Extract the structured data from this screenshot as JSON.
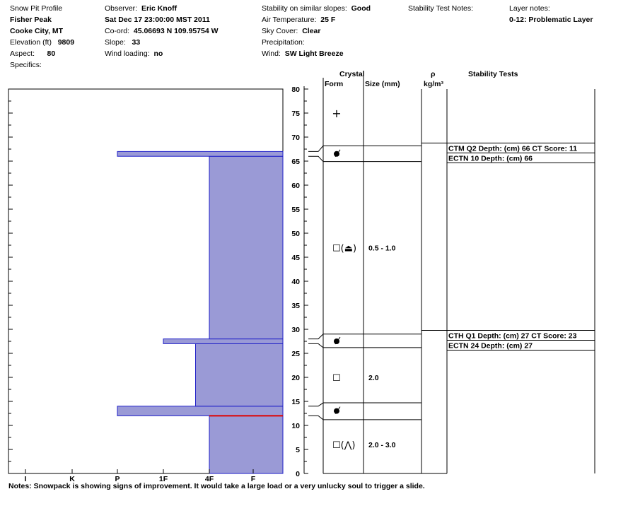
{
  "header": {
    "col1": {
      "title": "Snow Pit Profile",
      "location": "Fisher Peak",
      "area": "Cooke City, MT",
      "elevation_label": "Elevation (ft)",
      "elevation": "9809",
      "aspect_label": "Aspect:",
      "aspect": "80",
      "specifics_label": "Specifics:"
    },
    "col2": {
      "observer_label": "Observer:",
      "observer": "Eric Knoff",
      "datetime": "Sat Dec 17 23:00:00 MST 2011",
      "coord_label": "Co-ord:",
      "coord": "45.06693 N 109.95754 W",
      "slope_label": "Slope:",
      "slope": "33",
      "wind_loading_label": "Wind loading:",
      "wind_loading": "no"
    },
    "col3": {
      "stability_label": "Stability on similar slopes:",
      "stability": "Good",
      "air_temp_label": "Air Temperature:",
      "air_temp": "25 F",
      "sky_label": "Sky Cover:",
      "sky": "Clear",
      "precip_label": "Precipitation:",
      "wind_label": "Wind:",
      "wind": "SW Light Breeze"
    },
    "col4": {
      "stability_notes_label": "Stability Test Notes:"
    },
    "col5": {
      "layer_notes_label": "Layer notes:",
      "layer_note": "0-12: Problematic Layer"
    }
  },
  "columns": {
    "crystal": "Crystal",
    "form": "Form",
    "size": "Size (mm)",
    "rho": "ρ",
    "rho_unit": "kg/m³",
    "tests": "Stability Tests"
  },
  "chart_data": {
    "type": "bar",
    "orientation": "horizontal-step",
    "hardness_labels": [
      "I",
      "K",
      "P",
      "1F",
      "4F",
      "F"
    ],
    "y_axis_ticks": [
      "0",
      "5",
      "10",
      "15",
      "20",
      "25",
      "30",
      "35",
      "40",
      "45",
      "50",
      "55",
      "60",
      "65",
      "70",
      "75",
      "80"
    ],
    "ylim": [
      0,
      80
    ],
    "layers": [
      {
        "bottom": 0,
        "top": 12,
        "hardness": "4F",
        "value": 4
      },
      {
        "bottom": 12,
        "top": 14,
        "hardness": "P",
        "value": 2
      },
      {
        "bottom": 14,
        "top": 27,
        "hardness": "1F-4F",
        "value": 3.7
      },
      {
        "bottom": 27,
        "top": 28,
        "hardness": "1F",
        "value": 3
      },
      {
        "bottom": 28,
        "top": 66,
        "hardness": "4F",
        "value": 4
      },
      {
        "bottom": 66,
        "top": 67,
        "hardness": "P",
        "value": 2
      },
      {
        "bottom": 67,
        "top": 80,
        "hardness": "F",
        "value": 5
      }
    ],
    "red_line_depth": 12,
    "boundaries": [
      12,
      14,
      27,
      28,
      66,
      67
    ],
    "crystals": [
      {
        "depth": 75,
        "form": "+",
        "size": ""
      },
      {
        "depth": 66.5,
        "form": "surface-hoar",
        "size": ""
      },
      {
        "depth": 47,
        "form": "☐(⏏)",
        "size": "0.5 - 1.0"
      },
      {
        "depth": 27.5,
        "form": "surface-hoar",
        "size": ""
      },
      {
        "depth": 20,
        "form": "☐",
        "size": "2.0"
      },
      {
        "depth": 13,
        "form": "surface-hoar",
        "size": ""
      },
      {
        "depth": 6,
        "form": "☐(⋀)",
        "size": "2.0 - 3.0"
      }
    ],
    "tests": [
      {
        "line1": "CTM Q2 Depth: (cm) 66 CT Score: 11",
        "line2": "ECTN 10   Depth: (cm) 66",
        "depth": 66
      },
      {
        "line1": "CTH Q1 Depth: (cm) 27 CT Score: 23",
        "line2": "ECTN 24   Depth: (cm) 27",
        "depth": 27
      }
    ]
  },
  "notes": "Notes:  Snowpack is showing signs of improvement.  It would take a large load or a very unlucky soul to trigger a slide."
}
